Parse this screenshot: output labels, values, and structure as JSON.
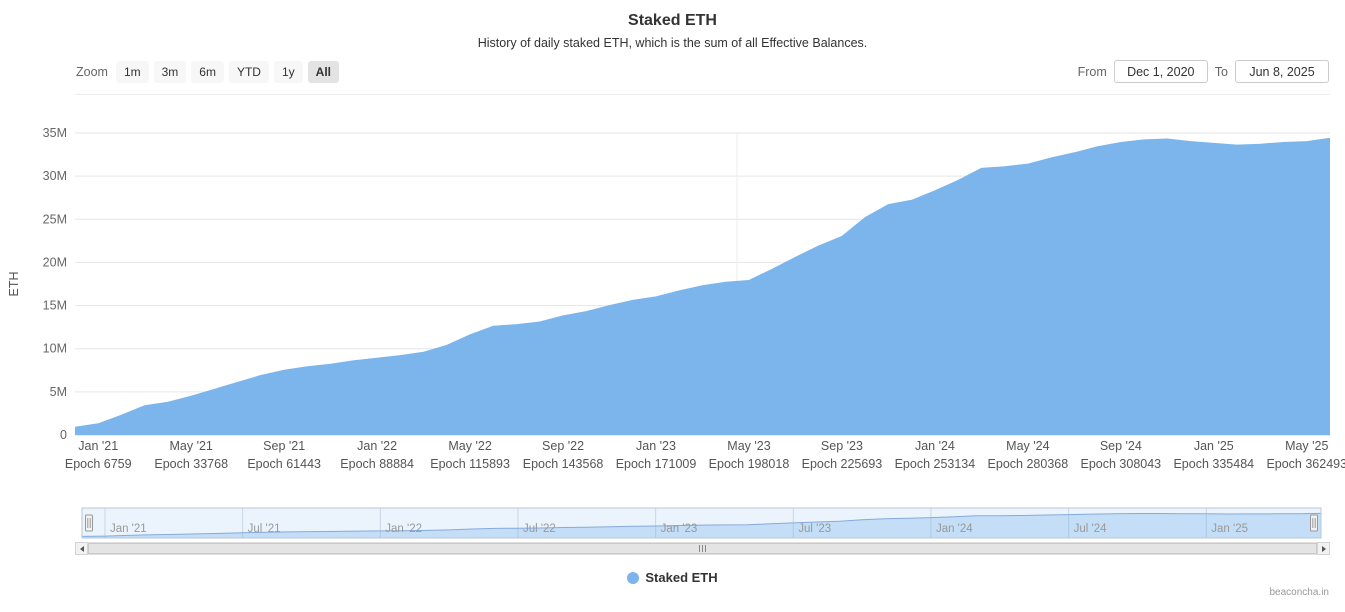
{
  "header": {
    "title": "Staked ETH",
    "subtitle": "History of daily staked ETH, which is the sum of all Effective Balances."
  },
  "toolbar": {
    "zoom_label": "Zoom",
    "zoom_buttons": [
      {
        "label": "1m",
        "selected": false
      },
      {
        "label": "3m",
        "selected": false
      },
      {
        "label": "6m",
        "selected": false
      },
      {
        "label": "YTD",
        "selected": false
      },
      {
        "label": "1y",
        "selected": false
      },
      {
        "label": "All",
        "selected": true
      }
    ],
    "from_label": "From",
    "from_value": "Dec 1, 2020",
    "to_label": "To",
    "to_value": "Jun 8, 2025"
  },
  "chart_data": {
    "type": "area",
    "title": "Staked ETH",
    "ylabel": "ETH",
    "unit": "million ETH",
    "ylim_millions": [
      0,
      35
    ],
    "ytick_values_millions": [
      0,
      5,
      10,
      15,
      20,
      25,
      30,
      35
    ],
    "ytick_labels": [
      "0",
      "5M",
      "10M",
      "15M",
      "20M",
      "25M",
      "30M",
      "35M"
    ],
    "grid": "horizontal",
    "legend_position": "bottom",
    "x": [
      "2020-12",
      "2021-01",
      "2021-02",
      "2021-03",
      "2021-04",
      "2021-05",
      "2021-06",
      "2021-07",
      "2021-08",
      "2021-09",
      "2021-10",
      "2021-11",
      "2021-12",
      "2022-01",
      "2022-02",
      "2022-03",
      "2022-04",
      "2022-05",
      "2022-06",
      "2022-07",
      "2022-08",
      "2022-09",
      "2022-10",
      "2022-11",
      "2022-12",
      "2023-01",
      "2023-02",
      "2023-03",
      "2023-04",
      "2023-05",
      "2023-06",
      "2023-07",
      "2023-08",
      "2023-09",
      "2023-10",
      "2023-11",
      "2023-12",
      "2024-01",
      "2024-02",
      "2024-03",
      "2024-04",
      "2024-05",
      "2024-06",
      "2024-07",
      "2024-08",
      "2024-09",
      "2024-10",
      "2024-11",
      "2024-12",
      "2025-01",
      "2025-02",
      "2025-03",
      "2025-04",
      "2025-05",
      "2025-06"
    ],
    "series": [
      {
        "name": "Staked ETH",
        "color": "#7cb5ec",
        "values_millions": [
          0.9,
          1.3,
          2.3,
          3.4,
          3.8,
          4.5,
          5.3,
          6.1,
          6.9,
          7.5,
          7.9,
          8.2,
          8.6,
          8.9,
          9.2,
          9.6,
          10.4,
          11.6,
          12.6,
          12.8,
          13.1,
          13.8,
          14.3,
          15.0,
          15.6,
          16.0,
          16.7,
          17.3,
          17.7,
          17.9,
          19.2,
          20.6,
          21.9,
          23.0,
          25.2,
          26.7,
          27.2,
          28.3,
          29.5,
          30.9,
          31.1,
          31.4,
          32.1,
          32.7,
          33.4,
          33.9,
          34.2,
          34.3,
          34.0,
          33.8,
          33.6,
          33.7,
          33.9,
          34.0,
          34.4
        ]
      }
    ],
    "x_ticks": [
      {
        "x": "2021-01",
        "date": "Jan '21",
        "epoch": "Epoch 6759"
      },
      {
        "x": "2021-05",
        "date": "May '21",
        "epoch": "Epoch 33768"
      },
      {
        "x": "2021-09",
        "date": "Sep '21",
        "epoch": "Epoch 61443"
      },
      {
        "x": "2022-01",
        "date": "Jan '22",
        "epoch": "Epoch 88884"
      },
      {
        "x": "2022-05",
        "date": "May '22",
        "epoch": "Epoch 115893"
      },
      {
        "x": "2022-09",
        "date": "Sep '22",
        "epoch": "Epoch 143568"
      },
      {
        "x": "2023-01",
        "date": "Jan '23",
        "epoch": "Epoch 171009"
      },
      {
        "x": "2023-05",
        "date": "May '23",
        "epoch": "Epoch 198018"
      },
      {
        "x": "2023-09",
        "date": "Sep '23",
        "epoch": "Epoch 225693"
      },
      {
        "x": "2024-01",
        "date": "Jan '24",
        "epoch": "Epoch 253134"
      },
      {
        "x": "2024-05",
        "date": "May '24",
        "epoch": "Epoch 280368"
      },
      {
        "x": "2024-09",
        "date": "Sep '24",
        "epoch": "Epoch 308043"
      },
      {
        "x": "2025-01",
        "date": "Jan '25",
        "epoch": "Epoch 335484"
      },
      {
        "x": "2025-05",
        "date": "May '25",
        "epoch": "Epoch 362493"
      }
    ]
  },
  "navigator": {
    "ticks": [
      {
        "x": "2021-01",
        "label": "Jan '21"
      },
      {
        "x": "2021-07",
        "label": "Jul '21"
      },
      {
        "x": "2022-01",
        "label": "Jan '22"
      },
      {
        "x": "2022-07",
        "label": "Jul '22"
      },
      {
        "x": "2023-01",
        "label": "Jan '23"
      },
      {
        "x": "2023-07",
        "label": "Jul '23"
      },
      {
        "x": "2024-01",
        "label": "Jan '24"
      },
      {
        "x": "2024-07",
        "label": "Jul '24"
      },
      {
        "x": "2025-01",
        "label": "Jan '25"
      }
    ]
  },
  "legend": {
    "items": [
      {
        "label": "Staked ETH",
        "color": "#7cb5ec"
      }
    ]
  },
  "credits": "beaconcha.in",
  "colors": {
    "series": "#7cb5ec",
    "grid": "#e6e6e6",
    "axis_line": "#ccd6eb",
    "label": "#666666",
    "nav_label": "#999999"
  }
}
